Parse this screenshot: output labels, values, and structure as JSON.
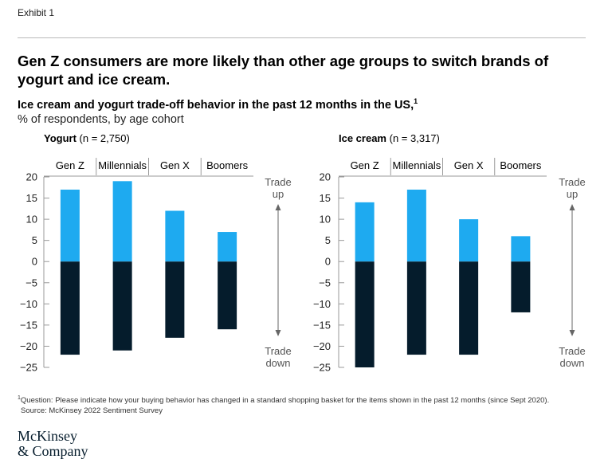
{
  "header": {
    "exhibit": "Exhibit 1",
    "title": "Gen Z consumers are more likely than other age groups to switch brands of yogurt and ice cream.",
    "subtitle": "Ice cream and yogurt trade-off behavior in the past 12 months in the US,",
    "subtitle_sup": "1",
    "unit": "% of respondents, by age cohort"
  },
  "colors": {
    "trade_up": "#1eaaf0",
    "trade_down": "#051c2c",
    "axis": "#9a9a9a"
  },
  "chart_data": [
    {
      "type": "bar",
      "title": "Yogurt",
      "subtitle": "(n = 2,750)",
      "categories": [
        "Gen Z",
        "Millennials",
        "Gen X",
        "Boomers"
      ],
      "series": [
        {
          "values": [
            17,
            19,
            12,
            7
          ]
        },
        {
          "values": [
            -22,
            -21,
            -18,
            -16
          ]
        }
      ],
      "ylim": [
        -25,
        20
      ],
      "yticks": [
        "20",
        "15",
        "10",
        "5",
        "0",
        "−5",
        "−10",
        "−15",
        "−20",
        "−25"
      ],
      "ytick_values": [
        20,
        15,
        10,
        5,
        0,
        -5,
        -10,
        -15,
        -20,
        -25
      ],
      "arrow_labels": {
        "up": [
          "Trade",
          "up"
        ],
        "down": [
          "Trade",
          "down"
        ]
      }
    },
    {
      "type": "bar",
      "title": "Ice cream",
      "subtitle": "(n = 3,317)",
      "categories": [
        "Gen Z",
        "Millennials",
        "Gen X",
        "Boomers"
      ],
      "series": [
        {
          "values": [
            14,
            17,
            10,
            6
          ]
        },
        {
          "values": [
            -25,
            -22,
            -22,
            -12
          ]
        }
      ],
      "ylim": [
        -25,
        20
      ],
      "yticks": [
        "20",
        "15",
        "10",
        "5",
        "0",
        "−5",
        "−10",
        "−15",
        "−20",
        "−25"
      ],
      "ytick_values": [
        20,
        15,
        10,
        5,
        0,
        -5,
        -10,
        -15,
        -20,
        -25
      ],
      "arrow_labels": {
        "up": [
          "Trade",
          "up"
        ],
        "down": [
          "Trade",
          "down"
        ]
      }
    }
  ],
  "footer": {
    "footnote_sup": "1",
    "footnote": "Question: Please indicate how your buying behavior has changed in a standard shopping basket for the items shown in the past 12 months (since Sept 2020).",
    "source": "Source: McKinsey 2022 Sentiment Survey",
    "logo_line1": "McKinsey",
    "logo_line2": "& Company"
  }
}
